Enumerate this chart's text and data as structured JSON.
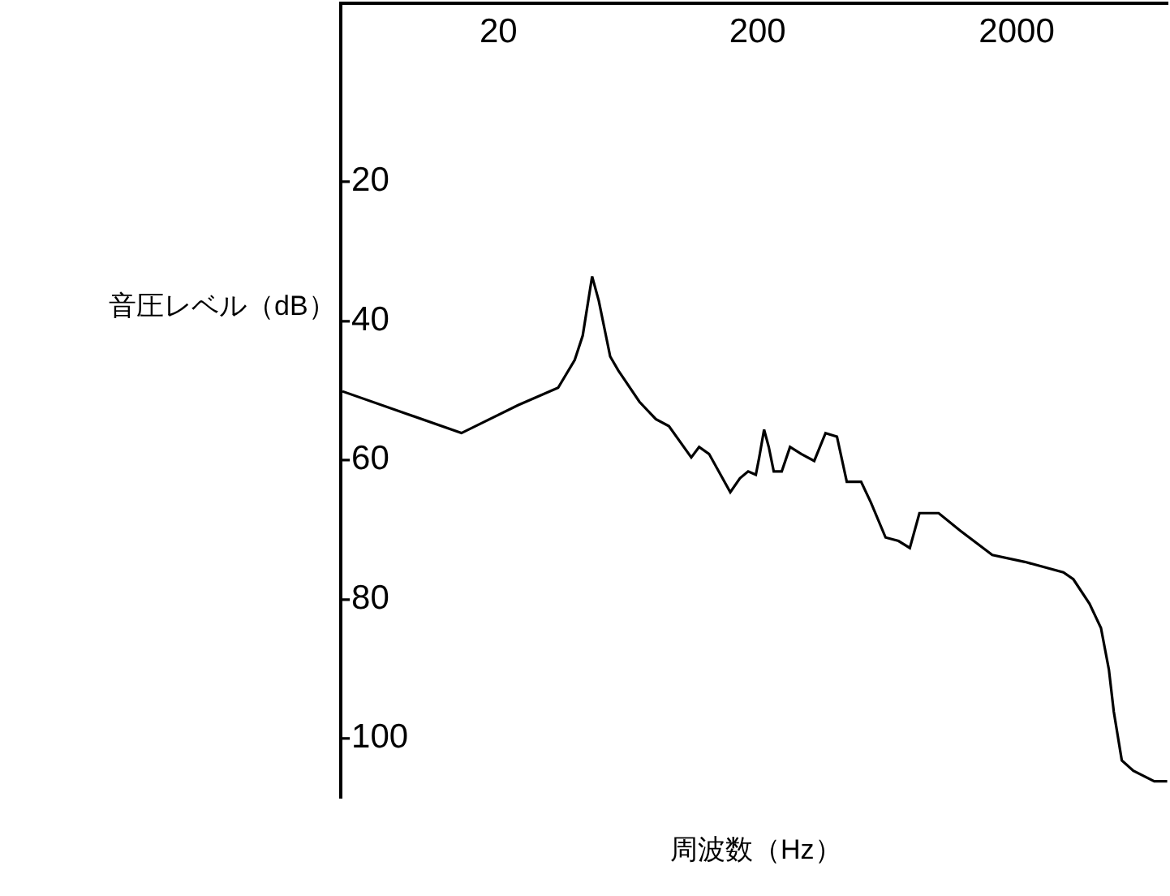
{
  "chart_data": {
    "type": "line",
    "xlabel": "周波数（Hz）",
    "ylabel": "音圧レベル（dB）",
    "log": "x",
    "legend": false,
    "marker": "none",
    "line_style": "solid",
    "xlim": [
      5,
      7700
    ],
    "xticks": [
      20,
      200,
      2000
    ],
    "ylim": [
      -109,
      5
    ],
    "yticks": [
      -20,
      -40,
      -60,
      -80,
      -100
    ],
    "series": [
      {
        "color": "#000000",
        "x": [
          5,
          14.4,
          23.8,
          34,
          39.4,
          42.3,
          46,
          48.8,
          54,
          58,
          70,
          81,
          91,
          111,
          119,
          130,
          157,
          171,
          184,
          197,
          203,
          212,
          221,
          231,
          248,
          267,
          295,
          331,
          366,
          405,
          442,
          502,
          548,
          624,
          700,
          774,
          843,
          1000,
          1210,
          1610,
          2150,
          3030,
          3310,
          3820,
          4230,
          4540,
          4740,
          5090,
          5640,
          6790,
          7620
        ],
        "values": [
          -50.5,
          -56.5,
          -52.5,
          -50,
          -46,
          -42.5,
          -34,
          -37.5,
          -45.5,
          -47.5,
          -52,
          -54.5,
          -55.5,
          -60,
          -58.5,
          -59.5,
          -65,
          -63,
          -62,
          -62.5,
          -60,
          -56,
          -58.5,
          -62,
          -62,
          -58.5,
          -59.5,
          -60.5,
          -56.5,
          -57,
          -63.5,
          -63.5,
          -66.5,
          -71.5,
          -72,
          -73,
          -68,
          -68,
          -70.5,
          -74,
          -75,
          -76.5,
          -77.5,
          -81,
          -84.5,
          -90.5,
          -96.5,
          -103.5,
          -105,
          -106.5,
          -106.5
        ]
      }
    ]
  }
}
